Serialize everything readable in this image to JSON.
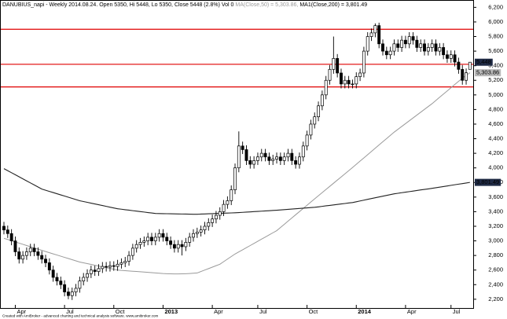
{
  "chart_data": {
    "type": "candlestick",
    "title": "DANUBIUS_napi - Weekly 2014.08.24. Open 5350, Hi 5448, Lo 5350, Close 5448 (2.8%) Vol 0",
    "footer": "Created with AmiBroker - advanced charting and technical analysis software. www.amibroker.com",
    "categories": [
      null,
      null,
      null,
      "Apr",
      null,
      null,
      null,
      null,
      null,
      null,
      null,
      null,
      null,
      null,
      null,
      null,
      "Jul",
      null,
      null,
      null,
      null,
      null,
      null,
      null,
      null,
      null,
      null,
      null,
      null,
      "Oct",
      null,
      null,
      null,
      null,
      null,
      null,
      null,
      null,
      null,
      null,
      null,
      null,
      "2013",
      null,
      null,
      null,
      null,
      null,
      null,
      null,
      null,
      null,
      null,
      null,
      null,
      "Apr",
      null,
      null,
      null,
      null,
      null,
      null,
      null,
      null,
      null,
      null,
      null,
      "Jul",
      null,
      null,
      null,
      null,
      null,
      null,
      null,
      null,
      null,
      null,
      null,
      null,
      "Oct",
      null,
      null,
      null,
      null,
      null,
      null,
      null,
      null,
      null,
      null,
      null,
      null,
      "2014",
      null,
      null,
      null,
      null,
      null,
      null,
      null,
      null,
      null,
      null,
      null,
      null,
      "Apr",
      null,
      null,
      null,
      null,
      null,
      null,
      null,
      null,
      null,
      null,
      null,
      "Jul",
      null,
      null,
      null,
      null,
      null
    ],
    "open": [
      3200,
      3150,
      3100,
      3000,
      2850,
      2750,
      2800,
      2850,
      2900,
      2850,
      2800,
      2750,
      2700,
      2600,
      2500,
      2450,
      2400,
      2300,
      2250,
      2300,
      2350,
      2450,
      2500,
      2550,
      2600,
      2580,
      2620,
      2650,
      2640,
      2660,
      2650,
      2680,
      2700,
      2720,
      2800,
      2900,
      2950,
      2980,
      3000,
      3050,
      3000,
      3050,
      3100,
      3050,
      3000,
      2950,
      2900,
      2950,
      2920,
      2980,
      3050,
      3100,
      3120,
      3150,
      3200,
      3250,
      3300,
      3350,
      3400,
      3500,
      3550,
      3700,
      4000,
      4300,
      4250,
      4100,
      4050,
      4100,
      4150,
      4200,
      4150,
      4100,
      4120,
      4150,
      4100,
      4150,
      4200,
      4100,
      4050,
      4150,
      4300,
      4450,
      4600,
      4700,
      4850,
      5000,
      5200,
      5350,
      5500,
      5300,
      5150,
      5200,
      5150,
      5150,
      5250,
      5300,
      5600,
      5800,
      5850,
      5950,
      5700,
      5600,
      5550,
      5600,
      5700,
      5650,
      5750,
      5700,
      5800,
      5750,
      5650,
      5700,
      5600,
      5650,
      5700,
      5600,
      5650,
      5550,
      5500,
      5550,
      5450,
      5350,
      5200,
      5350
    ],
    "high": [
      3260,
      3210,
      3160,
      3060,
      2910,
      2860,
      2910,
      2960,
      2960,
      2910,
      2860,
      2810,
      2760,
      2660,
      2560,
      2510,
      2460,
      2360,
      2360,
      2410,
      2510,
      2560,
      2610,
      2660,
      2660,
      2680,
      2710,
      2710,
      2720,
      2720,
      2740,
      2760,
      2780,
      2860,
      2960,
      3010,
      3040,
      3060,
      3110,
      3110,
      3110,
      3160,
      3160,
      3110,
      3060,
      3010,
      3010,
      3010,
      3040,
      3110,
      3160,
      3180,
      3210,
      3260,
      3310,
      3360,
      3410,
      3460,
      3560,
      3610,
      3760,
      4060,
      4500,
      4360,
      4310,
      4160,
      4160,
      4210,
      4260,
      4260,
      4210,
      4180,
      4210,
      4210,
      4210,
      4260,
      4260,
      4160,
      4210,
      4360,
      4510,
      4660,
      4760,
      4910,
      5060,
      5260,
      5410,
      5800,
      5560,
      5360,
      5260,
      5260,
      5210,
      5310,
      5360,
      5660,
      5860,
      5910,
      5980,
      5990,
      5760,
      5660,
      5660,
      5760,
      5760,
      5810,
      5810,
      5860,
      5860,
      5810,
      5760,
      5760,
      5710,
      5760,
      5760,
      5710,
      5710,
      5610,
      5610,
      5610,
      5510,
      5410,
      5363,
      5448
    ],
    "low": [
      3090,
      3040,
      2940,
      2790,
      2690,
      2690,
      2740,
      2790,
      2790,
      2740,
      2690,
      2640,
      2540,
      2440,
      2390,
      2340,
      2240,
      2200,
      2190,
      2240,
      2290,
      2390,
      2440,
      2490,
      2520,
      2520,
      2560,
      2580,
      2580,
      2590,
      2590,
      2620,
      2640,
      2660,
      2740,
      2840,
      2890,
      2920,
      2940,
      2940,
      2940,
      2990,
      2990,
      2940,
      2890,
      2840,
      2840,
      2800,
      2860,
      2920,
      2990,
      3040,
      3060,
      3090,
      3140,
      3190,
      3240,
      3290,
      3340,
      3440,
      3490,
      3640,
      3940,
      4190,
      4040,
      3990,
      3990,
      4040,
      4090,
      4090,
      4040,
      4040,
      4060,
      4040,
      4040,
      4090,
      4040,
      3990,
      3990,
      4090,
      4240,
      4390,
      4540,
      4640,
      4790,
      4940,
      5140,
      5290,
      5240,
      5090,
      5090,
      5090,
      5090,
      5090,
      5190,
      5240,
      5540,
      5740,
      5790,
      5640,
      5540,
      5490,
      5490,
      5540,
      5590,
      5590,
      5640,
      5640,
      5690,
      5590,
      5590,
      5540,
      5540,
      5590,
      5540,
      5540,
      5490,
      5440,
      5440,
      5390,
      5290,
      5140,
      5140,
      5350
    ],
    "close": [
      3150,
      3100,
      3000,
      2850,
      2750,
      2800,
      2850,
      2900,
      2850,
      2800,
      2750,
      2700,
      2600,
      2500,
      2450,
      2400,
      2300,
      2250,
      2300,
      2350,
      2450,
      2500,
      2550,
      2600,
      2580,
      2620,
      2650,
      2640,
      2660,
      2650,
      2680,
      2700,
      2720,
      2800,
      2900,
      2950,
      2980,
      3000,
      3050,
      3000,
      3050,
      3100,
      3050,
      3000,
      2950,
      2900,
      2950,
      2920,
      2980,
      3050,
      3100,
      3120,
      3150,
      3200,
      3250,
      3300,
      3350,
      3400,
      3500,
      3550,
      3700,
      4000,
      4300,
      4250,
      4100,
      4050,
      4100,
      4150,
      4200,
      4150,
      4100,
      4120,
      4150,
      4100,
      4150,
      4200,
      4100,
      4050,
      4150,
      4300,
      4450,
      4600,
      4700,
      4850,
      5000,
      5200,
      5350,
      5500,
      5300,
      5150,
      5200,
      5150,
      5150,
      5250,
      5300,
      5600,
      5800,
      5850,
      5950,
      5700,
      5600,
      5550,
      5600,
      5700,
      5650,
      5750,
      5700,
      5800,
      5750,
      5650,
      5700,
      5600,
      5650,
      5700,
      5600,
      5650,
      5550,
      5500,
      5550,
      5450,
      5350,
      5200,
      5303,
      5448
    ],
    "last_value_label": "5,448",
    "color_up": "#ffffff",
    "color_down": "#000000",
    "outline": "#000000",
    "lines": [
      {
        "name": "MA(Close,50) = 5,303.86,",
        "color": "#9a9a9a",
        "last_value_label": "5,303.86",
        "values": [
          3035,
          3019,
          3002,
          2986,
          2969,
          2953,
          2936,
          2920,
          2903,
          2887,
          2870,
          2854,
          2838,
          2822,
          2806,
          2790,
          2774,
          2758,
          2742,
          2726,
          2710,
          2699,
          2688,
          2677,
          2666,
          2655,
          2644,
          2633,
          2622,
          2611,
          2600,
          2596,
          2592,
          2588,
          2584,
          2580,
          2576,
          2572,
          2568,
          2564,
          2560,
          2556,
          2552,
          2550,
          2548,
          2547,
          2547,
          2548,
          2550,
          2553,
          2556,
          2560,
          2580,
          2600,
          2620,
          2640,
          2660,
          2680,
          2715,
          2750,
          2785,
          2820,
          2849,
          2878,
          2907,
          2936,
          2965,
          2995,
          3024,
          3053,
          3082,
          3111,
          3140,
          3184,
          3227,
          3271,
          3314,
          3358,
          3401,
          3445,
          3488,
          3532,
          3575,
          3618,
          3661,
          3704,
          3747,
          3790,
          3833,
          3876,
          3919,
          3962,
          4005,
          4049,
          4093,
          4137,
          4181,
          4225,
          4270,
          4314,
          4358,
          4402,
          4446,
          4490,
          4529,
          4568,
          4607,
          4646,
          4685,
          4724,
          4763,
          4802,
          4841,
          4880,
          4924,
          4968,
          5011,
          5055,
          5099,
          5143,
          5186,
          5230,
          5267,
          5303.86
        ]
      },
      {
        "name": "MA1(Close,200) = 3,801.49",
        "color": "#222222",
        "last_value_label": "3,801.49",
        "values": [
          3990,
          3962,
          3934,
          3906,
          3878,
          3850,
          3822,
          3794,
          3766,
          3738,
          3710,
          3694,
          3678,
          3662,
          3646,
          3630,
          3614,
          3598,
          3582,
          3566,
          3550,
          3539,
          3528,
          3517,
          3506,
          3495,
          3484,
          3473,
          3462,
          3451,
          3440,
          3434,
          3427,
          3421,
          3414,
          3408,
          3401,
          3395,
          3388,
          3382,
          3375,
          3374,
          3373,
          3372,
          3371,
          3370,
          3369,
          3368,
          3367,
          3366,
          3365,
          3365,
          3367,
          3369,
          3371,
          3373,
          3375,
          3377,
          3379,
          3381,
          3383,
          3385,
          3388,
          3391,
          3394,
          3397,
          3401,
          3404,
          3407,
          3410,
          3413,
          3417,
          3420,
          3424,
          3428,
          3432,
          3436,
          3440,
          3444,
          3448,
          3452,
          3456,
          3460,
          3466,
          3473,
          3480,
          3486,
          3493,
          3499,
          3506,
          3512,
          3519,
          3525,
          3536,
          3547,
          3558,
          3569,
          3580,
          3591,
          3602,
          3612,
          3623,
          3634,
          3645,
          3652,
          3660,
          3668,
          3675,
          3682,
          3690,
          3698,
          3705,
          3712,
          3720,
          3728,
          3736,
          3744,
          3752,
          3761,
          3769,
          3777,
          3785,
          3793,
          3801.49
        ]
      }
    ],
    "hlines": {
      "values": [
        5900,
        5420,
        5110
      ],
      "color": "#e00000"
    },
    "ylim": [
      2080,
      6290
    ],
    "yticks": [
      {
        "value": 2200,
        "label": "2,200"
      },
      {
        "value": 2400,
        "label": "2,400"
      },
      {
        "value": 2600,
        "label": "2,600"
      },
      {
        "value": 2800,
        "label": "2,800"
      },
      {
        "value": 3000,
        "label": "3,000"
      },
      {
        "value": 3200,
        "label": "3,200"
      },
      {
        "value": 3400,
        "label": "3,400"
      },
      {
        "value": 3600,
        "label": "3,600"
      },
      {
        "value": 3800,
        "label": "3,800"
      },
      {
        "value": 4000,
        "label": "4,000"
      },
      {
        "value": 4200,
        "label": "4,200"
      },
      {
        "value": 4400,
        "label": "4,400"
      },
      {
        "value": 4600,
        "label": "4,600"
      },
      {
        "value": 4800,
        "label": "4,800"
      },
      {
        "value": 5000,
        "label": "5,000"
      },
      {
        "value": 5200,
        "label": "5,200"
      },
      {
        "value": 5400,
        "label": "5,400"
      },
      {
        "value": 5600,
        "label": "5,600"
      },
      {
        "value": 5800,
        "label": "5,800"
      },
      {
        "value": 6000,
        "label": "6,000"
      },
      {
        "value": 6200,
        "label": "6,200"
      }
    ],
    "bold_categories": [
      "2013",
      "2014"
    ]
  }
}
